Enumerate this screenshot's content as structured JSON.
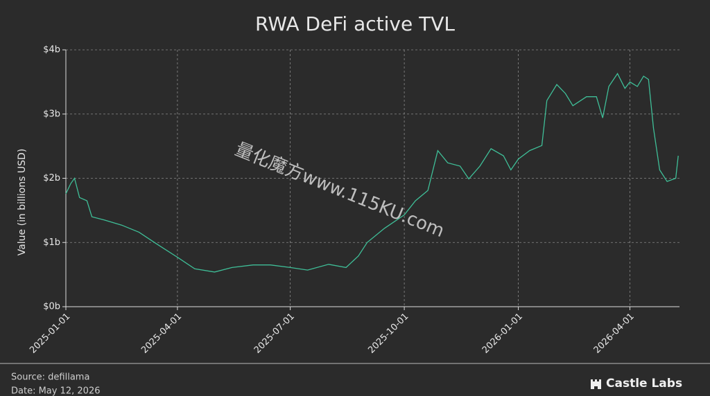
{
  "chart_data": {
    "type": "line",
    "title": "RWA DeFi active TVL",
    "y_label": "Value (in billions USD)",
    "x": [
      "2025-01-01",
      "2025-01-05",
      "2025-01-08",
      "2025-01-12",
      "2025-01-18",
      "2025-01-22",
      "2025-02-01",
      "2025-02-15",
      "2025-03-01",
      "2025-03-15",
      "2025-04-01",
      "2025-04-15",
      "2025-05-01",
      "2025-05-15",
      "2025-06-01",
      "2025-06-15",
      "2025-07-01",
      "2025-07-15",
      "2025-08-01",
      "2025-08-15",
      "2025-08-25",
      "2025-09-01",
      "2025-09-15",
      "2025-10-01",
      "2025-10-10",
      "2025-10-20",
      "2025-10-28",
      "2025-11-05",
      "2025-11-15",
      "2025-11-22",
      "2025-12-01",
      "2025-12-10",
      "2025-12-20",
      "2025-12-26",
      "2026-01-01",
      "2026-01-10",
      "2026-01-20",
      "2026-01-24",
      "2026-02-01",
      "2026-02-08",
      "2026-02-14",
      "2026-02-25",
      "2026-03-05",
      "2026-03-10",
      "2026-03-15",
      "2026-03-22",
      "2026-03-28",
      "2026-04-01",
      "2026-04-07",
      "2026-04-12",
      "2026-04-16",
      "2026-04-20",
      "2026-04-25",
      "2026-05-01",
      "2026-05-08",
      "2026-05-10"
    ],
    "series": [
      {
        "name": "RWA DeFi active TVL",
        "color": "#3fbf98",
        "values": [
          1.76,
          1.92,
          2.0,
          1.7,
          1.65,
          1.4,
          1.35,
          1.27,
          1.16,
          0.98,
          0.77,
          0.59,
          0.54,
          0.61,
          0.65,
          0.65,
          0.61,
          0.57,
          0.66,
          0.61,
          0.79,
          1.0,
          1.22,
          1.43,
          1.65,
          1.81,
          2.43,
          2.24,
          2.19,
          1.99,
          2.19,
          2.46,
          2.35,
          2.13,
          2.3,
          2.43,
          2.51,
          3.21,
          3.46,
          3.32,
          3.13,
          3.27,
          3.27,
          2.94,
          3.43,
          3.63,
          3.4,
          3.5,
          3.43,
          3.59,
          3.54,
          2.78,
          2.13,
          1.95,
          2.0,
          2.35
        ]
      }
    ],
    "xlim": [
      "2025-01-01",
      "2026-05-11"
    ],
    "xticks": [
      "2025-01-01",
      "2025-04-01",
      "2025-07-01",
      "2025-10-01",
      "2026-01-01",
      "2026-04-01"
    ],
    "ylim": [
      0,
      4
    ],
    "yticks": [
      {
        "value": 0,
        "label": "$0b"
      },
      {
        "value": 1,
        "label": "$1b"
      },
      {
        "value": 2,
        "label": "$2b"
      },
      {
        "value": 3,
        "label": "$3b"
      },
      {
        "value": 4,
        "label": "$4b"
      }
    ],
    "grid": true
  },
  "footer": {
    "source": "Source: defillama",
    "date": "Date: May 12, 2026",
    "brand": "Castle Labs"
  },
  "watermark": "量化魔方www.115KU.com"
}
